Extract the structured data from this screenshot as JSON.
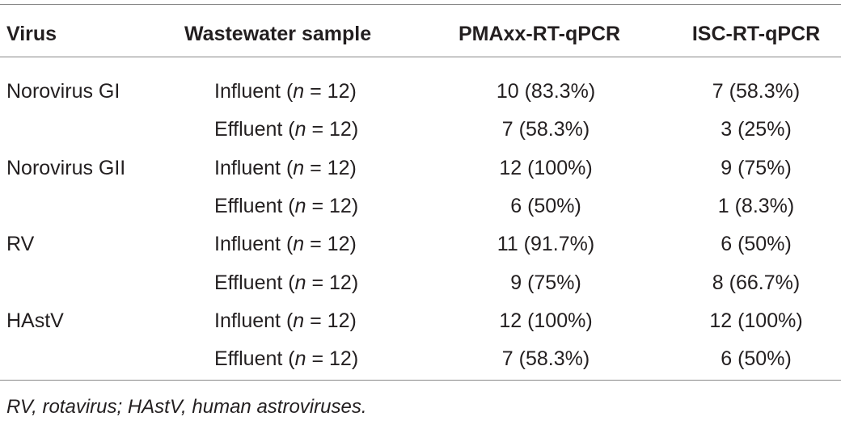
{
  "table": {
    "header": [
      "Virus",
      "Wastewater sample",
      "PMAxx-RT-qPCR",
      "ISC-RT-qPCR"
    ],
    "rows": [
      [
        "Norovirus GI",
        [
          "Influent (",
          "n",
          " = 12)"
        ],
        "10 (83.3%)",
        "7 (58.3%)"
      ],
      [
        null,
        [
          "Effluent (",
          "n",
          " = 12)"
        ],
        "7 (58.3%)",
        "3 (25%)"
      ],
      [
        "Norovirus GII",
        [
          "Influent (",
          "n",
          " = 12)"
        ],
        "12 (100%)",
        "9 (75%)"
      ],
      [
        null,
        [
          "Effluent (",
          "n",
          " = 12)"
        ],
        "6 (50%)",
        "1 (8.3%)"
      ],
      [
        "RV",
        [
          "Influent (",
          "n",
          " = 12)"
        ],
        "11 (91.7%)",
        "6 (50%)"
      ],
      [
        null,
        [
          "Effluent (",
          "n",
          " = 12)"
        ],
        "9 (75%)",
        "8 (66.7%)"
      ],
      [
        "HAstV",
        [
          "Influent (",
          "n",
          " = 12)"
        ],
        "12 (100%)",
        "12 (100%)"
      ],
      [
        null,
        [
          "Effluent (",
          "n",
          " = 12)"
        ],
        "7 (58.3%)",
        "6 (50%)"
      ]
    ],
    "footnote": "RV, rotavirus; HAstV, human astroviruses."
  }
}
